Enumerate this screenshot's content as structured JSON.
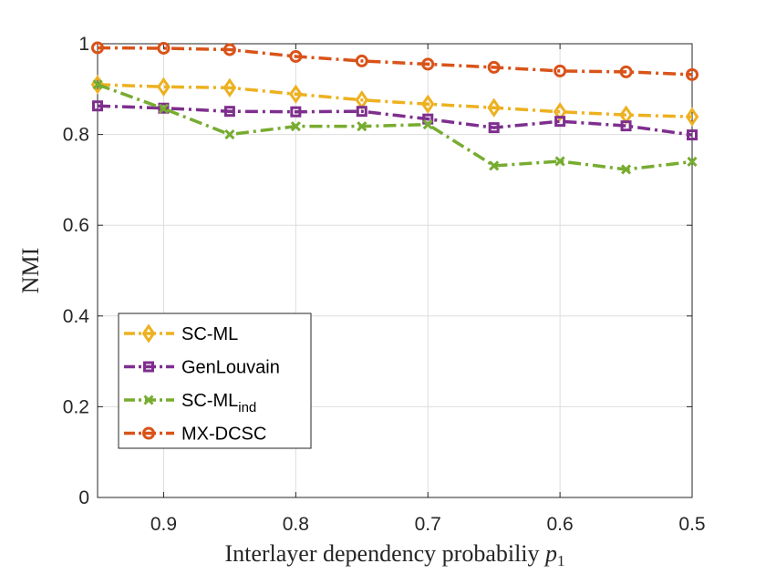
{
  "chart_data": {
    "type": "line",
    "x": [
      0.95,
      0.9,
      0.85,
      0.8,
      0.75,
      0.7,
      0.65,
      0.6,
      0.55,
      0.5
    ],
    "xlim": [
      0.95,
      0.5
    ],
    "ylim": [
      0,
      1
    ],
    "xticks": [
      "0.9",
      "0.8",
      "0.7",
      "0.6",
      "0.5"
    ],
    "yticks": [
      "0",
      "0.2",
      "0.4",
      "0.6",
      "0.8",
      "1"
    ],
    "ylabel": "NMI",
    "xlabel": "Interlayer dependency probabiliy",
    "xlabel_symbol": "p",
    "xlabel_subscript": "1",
    "grid": true,
    "legend_position": "bottom-left",
    "series": [
      {
        "name": "SC-ML",
        "name_sub": "",
        "color": "#EDB120",
        "marker": "diamond",
        "values": [
          0.91,
          0.905,
          0.903,
          0.889,
          0.876,
          0.867,
          0.859,
          0.85,
          0.843,
          0.839
        ]
      },
      {
        "name": "GenLouvain",
        "name_sub": "",
        "color": "#7E2F8E",
        "marker": "square",
        "values": [
          0.863,
          0.858,
          0.851,
          0.85,
          0.851,
          0.834,
          0.815,
          0.829,
          0.819,
          0.799
        ]
      },
      {
        "name": "SC-ML",
        "name_sub": "ind",
        "color": "#77AC30",
        "marker": "x",
        "values": [
          0.91,
          0.857,
          0.8,
          0.818,
          0.818,
          0.822,
          0.731,
          0.741,
          0.723,
          0.74
        ]
      },
      {
        "name": "MX-DCSC",
        "name_sub": "",
        "color": "#D95319",
        "marker": "circle",
        "values": [
          0.991,
          0.99,
          0.987,
          0.972,
          0.962,
          0.955,
          0.948,
          0.94,
          0.938,
          0.932
        ]
      }
    ]
  }
}
